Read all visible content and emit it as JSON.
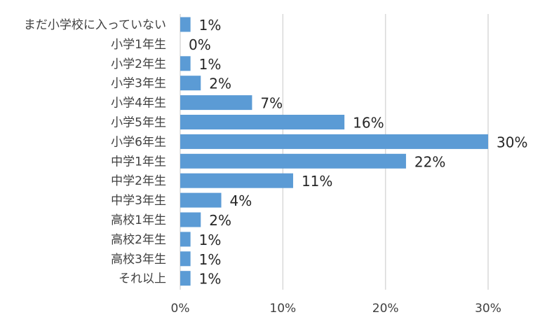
{
  "chart_data": {
    "type": "bar",
    "orientation": "horizontal",
    "title": "",
    "xlabel": "",
    "ylabel": "",
    "categories": [
      "まだ小学校に入っていない",
      "小学1年生",
      "小学2年生",
      "小学3年生",
      "小学4年生",
      "小学5年生",
      "小学6年生",
      "中学1年生",
      "中学2年生",
      "中学3年生",
      "高校1年生",
      "高校2年生",
      "高校3年生",
      "それ以上"
    ],
    "values": [
      1,
      0,
      1,
      2,
      7,
      16,
      30,
      22,
      11,
      4,
      2,
      1,
      1,
      1
    ],
    "data_labels": [
      "1%",
      "0%",
      "1%",
      "2%",
      "7%",
      "16%",
      "30%",
      "22%",
      "11%",
      "4%",
      "2%",
      "1%",
      "1%",
      "1%"
    ],
    "xlim": [
      0,
      30
    ],
    "x_ticks": [
      0,
      10,
      20,
      30
    ],
    "x_tick_labels": [
      "0%",
      "10%",
      "20%",
      "30%"
    ],
    "grid": "vertical",
    "legend": "none",
    "bar_color": "#5B9BD5",
    "grid_color": "#D9D9D9"
  }
}
